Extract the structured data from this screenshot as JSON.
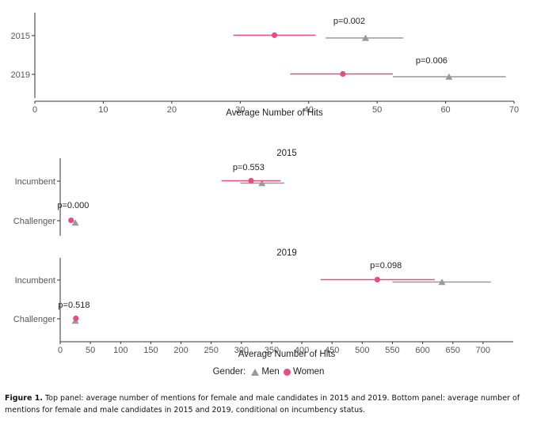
{
  "chart_data": [
    {
      "type": "dot-interval",
      "title": "",
      "xlabel": "Average Number of Hits",
      "xlim": [
        0,
        70
      ],
      "xticks": [
        0,
        10,
        20,
        30,
        40,
        50,
        60,
        70
      ],
      "categories": [
        "2015",
        "2019"
      ],
      "series": [
        {
          "name": "Women",
          "color": "#e3507f",
          "marker": "circle",
          "values": [
            35,
            45
          ],
          "lower": [
            29,
            37.3
          ],
          "upper": [
            41,
            52.3
          ]
        },
        {
          "name": "Men",
          "color": "#999999",
          "marker": "triangle",
          "values": [
            48.3,
            60.5
          ],
          "lower": [
            42.5,
            52.3
          ],
          "upper": [
            53.8,
            68.8
          ]
        }
      ],
      "annotations": [
        "p=0.002",
        "p=0.006"
      ]
    },
    {
      "type": "dot-interval",
      "title": "2015",
      "xlabel": "",
      "xlim": [
        0,
        750
      ],
      "categories": [
        "Incumbent",
        "Challenger"
      ],
      "series": [
        {
          "name": "Women",
          "color": "#e3507f",
          "marker": "circle",
          "values": [
            316,
            18
          ],
          "lower": [
            267,
            16
          ],
          "upper": [
            365,
            20
          ]
        },
        {
          "name": "Men",
          "color": "#999999",
          "marker": "triangle",
          "values": [
            334,
            25
          ],
          "lower": [
            298,
            23
          ],
          "upper": [
            371,
            27
          ]
        }
      ],
      "annotations": [
        "p=0.553",
        "p=0.000"
      ]
    },
    {
      "type": "dot-interval",
      "title": "2019",
      "xlabel": "Average Number of Hits",
      "xlim": [
        0,
        750
      ],
      "xticks": [
        0,
        50,
        100,
        150,
        200,
        250,
        300,
        350,
        400,
        450,
        500,
        550,
        600,
        650,
        700
      ],
      "categories": [
        "Incumbent",
        "Challenger"
      ],
      "series": [
        {
          "name": "Women",
          "color": "#e3507f",
          "marker": "circle",
          "values": [
            525,
            26
          ],
          "lower": [
            431,
            24
          ],
          "upper": [
            620,
            28
          ]
        },
        {
          "name": "Men",
          "color": "#999999",
          "marker": "triangle",
          "values": [
            632,
            25
          ],
          "lower": [
            550,
            23
          ],
          "upper": [
            713,
            27
          ]
        }
      ],
      "annotations": [
        "p=0.098",
        "p=0.518"
      ]
    }
  ],
  "legend": {
    "title": "Gender:",
    "items": [
      "Men",
      "Women"
    ]
  },
  "caption": {
    "label": "Figure 1.",
    "text": " Top panel: average number of mentions for female and male candidates in 2015 and 2019. Bottom panel: average number of mentions for female and male candidates in 2015 and 2019, conditional on incumbency status."
  }
}
